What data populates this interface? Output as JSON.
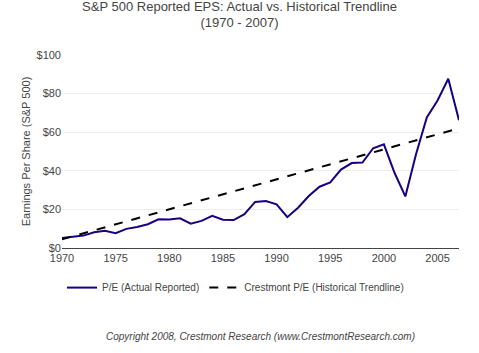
{
  "chart_data": {
    "type": "line",
    "title": "S&P 500 Reported EPS: Actual vs. Historical Trendline",
    "subtitle": "(1970 - 2007)",
    "y_label": "Earnings Per Share (S&P 500)",
    "annotations": [
      "Copyright 2008, Crestmont Research (www.CrestmontResearch.com)"
    ],
    "xlim": [
      1970,
      2007
    ],
    "xticks": [
      1970,
      1975,
      1980,
      1985,
      1990,
      1995,
      2000,
      2005
    ],
    "ylim": [
      0,
      100
    ],
    "yticks": [
      {
        "value": 0,
        "label": "$0"
      },
      {
        "value": 20,
        "label": "$20"
      },
      {
        "value": 40,
        "label": "$40"
      },
      {
        "value": 60,
        "label": "$60"
      },
      {
        "value": 80,
        "label": "$80"
      },
      {
        "value": 100,
        "label": "$100"
      }
    ],
    "grid": true,
    "legend": "bottom",
    "series": [
      {
        "name": "P/E (Actual Reported)",
        "color": "#1a0080",
        "line_style": "solid",
        "x": [
          1970,
          1971,
          1972,
          1973,
          1974,
          1975,
          1976,
          1977,
          1978,
          1979,
          1980,
          1981,
          1982,
          1983,
          1984,
          1985,
          1986,
          1987,
          1988,
          1989,
          1990,
          1991,
          1992,
          1993,
          1994,
          1995,
          1996,
          1997,
          1998,
          1999,
          2000,
          2001,
          2002,
          2003,
          2004,
          2005,
          2006,
          2007
        ],
        "values": [
          5.13,
          5.7,
          6.42,
          8.16,
          8.89,
          7.71,
          9.91,
          10.89,
          12.33,
          14.86,
          14.82,
          15.36,
          12.64,
          14.03,
          16.64,
          14.61,
          14.48,
          17.5,
          23.89,
          24.32,
          22.65,
          15.97,
          20.87,
          26.9,
          31.75,
          33.96,
          40.63,
          44.01,
          44.27,
          51.68,
          53.7,
          38.85,
          26.74,
          48.74,
          67.68,
          76.45,
          87.72,
          66.18
        ]
      },
      {
        "name": "Crestmont P/E (Historical Trendline)",
        "color": "#000000",
        "line_style": "dashed",
        "x": [
          1970,
          2007
        ],
        "values": [
          4.5,
          62.0
        ]
      }
    ]
  }
}
